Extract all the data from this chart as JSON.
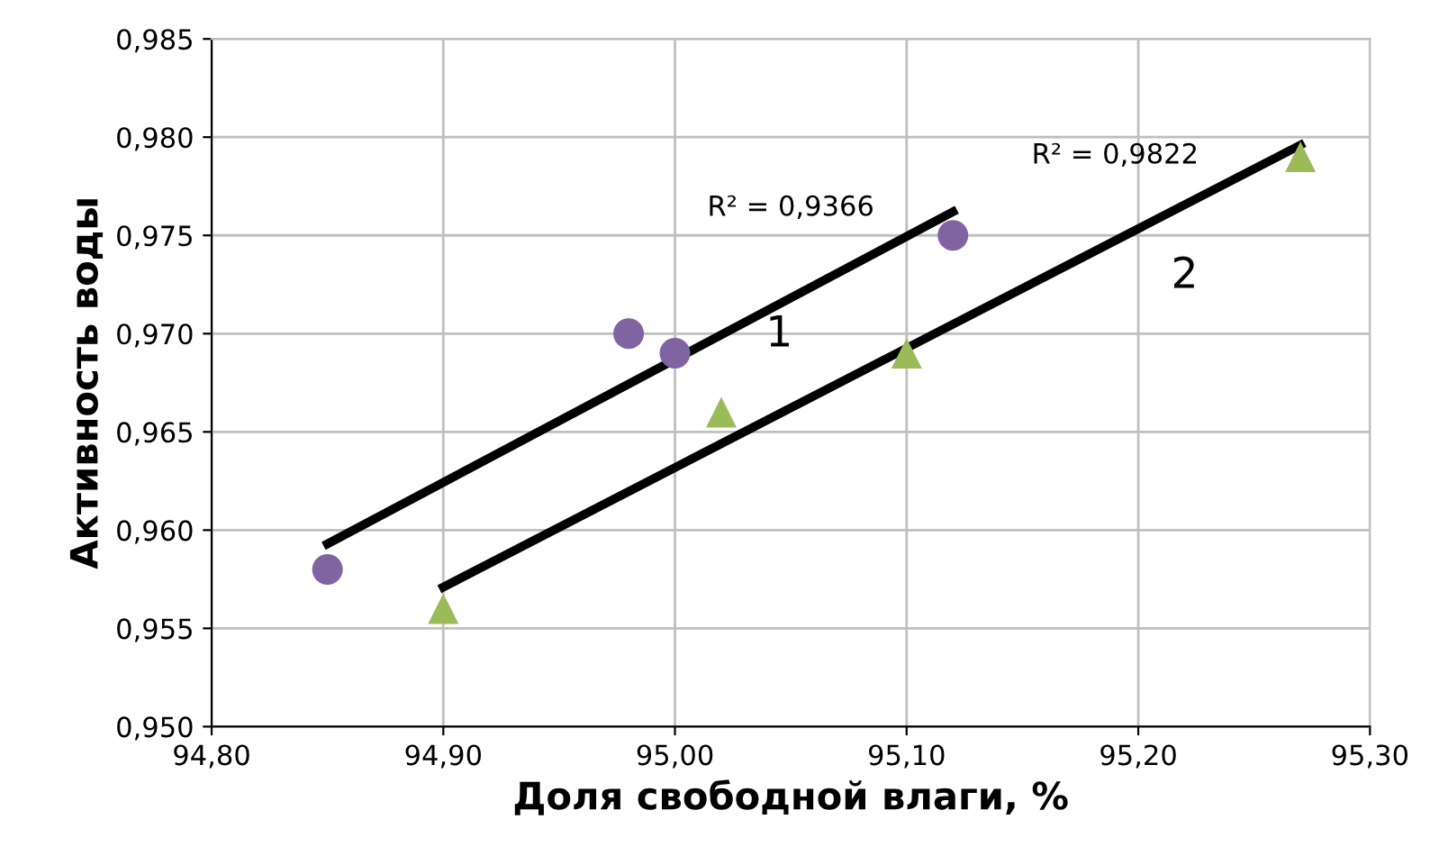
{
  "chart_data": {
    "type": "scatter",
    "xlabel": "Доля свободной влаги, %",
    "ylabel": "Активность воды",
    "series": [
      {
        "color": "#8064a2",
        "marker": "circle",
        "x": [
          94.85,
          94.98,
          95.0,
          95.12
        ],
        "values": [
          0.958,
          0.97,
          0.969,
          0.975
        ]
      },
      {
        "color": "#9bbb59",
        "marker": "triangle",
        "x": [
          94.9,
          95.02,
          95.1,
          95.27
        ],
        "values": [
          0.956,
          0.966,
          0.969,
          0.979
        ]
      },
      {
        "type": "line",
        "color": "#000000",
        "line_style": "solid",
        "x": [
          94.85,
          95.12
        ],
        "values": [
          0.9593,
          0.9762
        ]
      },
      {
        "type": "line",
        "color": "#000000",
        "line_style": "solid",
        "x": [
          94.9,
          95.27
        ],
        "values": [
          0.9571,
          0.9796
        ]
      }
    ],
    "annotations": [
      "R² = 0,9366",
      "R² = 0,9822",
      "1",
      "2"
    ],
    "xlim": [
      94.8,
      95.3
    ],
    "xticks": [
      {
        "value": 94.8,
        "label": "94,80"
      },
      {
        "value": 94.9,
        "label": "94,90"
      },
      {
        "value": 95.0,
        "label": "95,00"
      },
      {
        "value": 95.1,
        "label": "95,10"
      },
      {
        "value": 95.2,
        "label": "95,20"
      },
      {
        "value": 95.3,
        "label": "95,30"
      }
    ],
    "ylim": [
      0.95,
      0.985
    ],
    "yticks": [
      {
        "value": 0.95,
        "label": "0,950"
      },
      {
        "value": 0.955,
        "label": "0,955"
      },
      {
        "value": 0.96,
        "label": "0,960"
      },
      {
        "value": 0.965,
        "label": "0,965"
      },
      {
        "value": 0.97,
        "label": "0,970"
      },
      {
        "value": 0.975,
        "label": "0,975"
      },
      {
        "value": 0.98,
        "label": "0,980"
      },
      {
        "value": 0.985,
        "label": "0,985"
      }
    ],
    "grid": true
  }
}
